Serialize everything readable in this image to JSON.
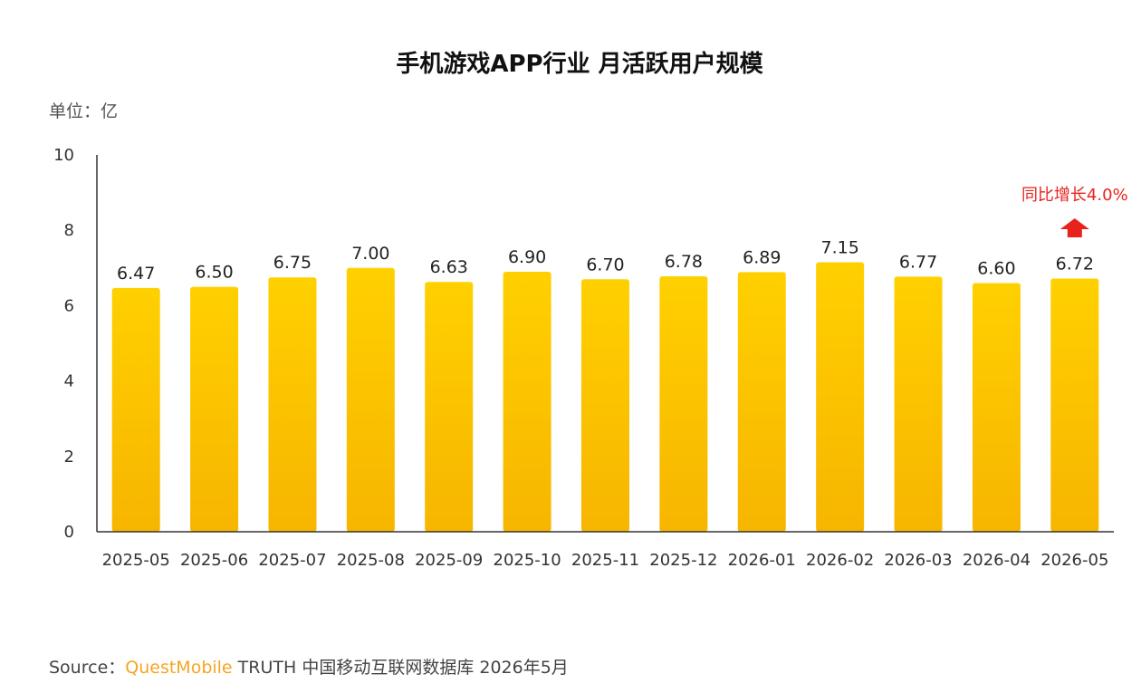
{
  "colors": {
    "bar_top": "#ffd000",
    "bar_bottom": "#f7b500",
    "annotation": "#e8231e",
    "brand": "#f5a623"
  },
  "source": {
    "prefix": "Source：",
    "brand": "QuestMobile",
    "suffix": " TRUTH 中国移动互联网数据库 2026年5月"
  },
  "chart_data": {
    "type": "bar",
    "title": "手机游戏APP行业 月活跃用户规模",
    "unit": "单位：亿",
    "categories": [
      "2025-05",
      "2025-06",
      "2025-07",
      "2025-08",
      "2025-09",
      "2025-10",
      "2025-11",
      "2025-12",
      "2026-01",
      "2026-02",
      "2026-03",
      "2026-04",
      "2026-05"
    ],
    "values": [
      6.47,
      6.5,
      6.75,
      7.0,
      6.63,
      6.9,
      6.7,
      6.78,
      6.89,
      7.15,
      6.77,
      6.6,
      6.72
    ],
    "value_labels": [
      "6.47",
      "6.50",
      "6.75",
      "7.00",
      "6.63",
      "6.90",
      "6.70",
      "6.78",
      "6.89",
      "7.15",
      "6.77",
      "6.60",
      "6.72"
    ],
    "yticks": [
      "0",
      "2",
      "4",
      "6",
      "8",
      "10"
    ],
    "ylim": [
      0,
      10
    ],
    "grid": false,
    "annotation": {
      "text": "同比增长4.0%",
      "category_index": 12,
      "icon": "red-up-arrow-icon"
    }
  }
}
